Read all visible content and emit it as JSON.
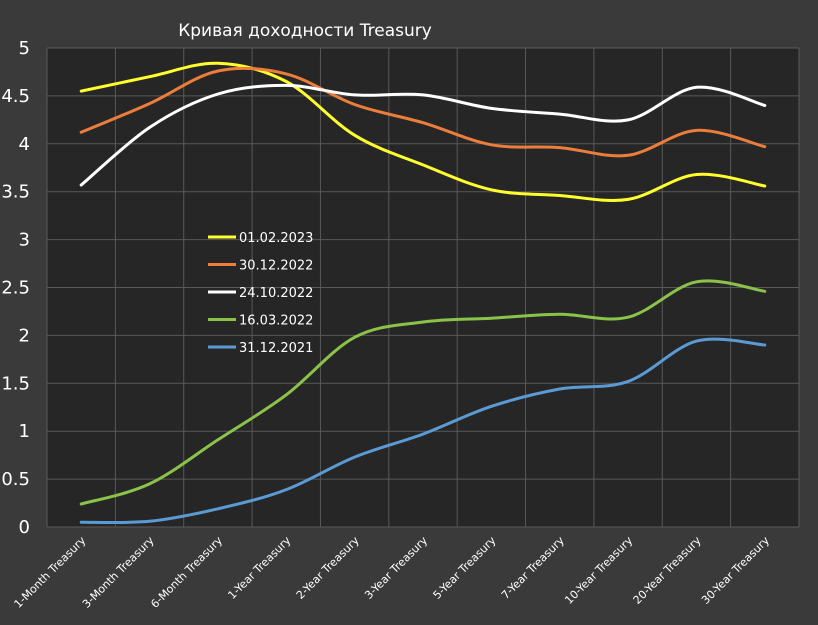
{
  "chart_data": {
    "type": "line",
    "title": "Кривая доходности Treasury",
    "xlabel": "",
    "ylabel": "",
    "ylim": [
      0,
      5
    ],
    "yticks": [
      "0",
      "0.5",
      "1",
      "1.5",
      "2",
      "2.5",
      "3",
      "3.5",
      "4",
      "4.5",
      "5"
    ],
    "grid": true,
    "legend_position": "center-left",
    "categories": [
      "1-Month Treasury",
      "3-Month Treasury",
      "6-Month Treasury",
      "1-Year Treasury",
      "2-Year Treasury",
      "3-Year Treasury",
      "5-Year Treasury",
      "7-Year Treasury",
      "10-Year Treasury",
      "20-Year Treasury",
      "30-Year Treasury"
    ],
    "series": [
      {
        "name": "01.02.2023",
        "color": "#ffff2e",
        "values": [
          4.55,
          4.7,
          4.84,
          4.65,
          4.09,
          3.78,
          3.52,
          3.46,
          3.42,
          3.68,
          3.56
        ]
      },
      {
        "name": "30.12.2022",
        "color": "#ec7d3b",
        "values": [
          4.12,
          4.42,
          4.76,
          4.73,
          4.41,
          4.22,
          3.99,
          3.96,
          3.88,
          4.14,
          3.97
        ]
      },
      {
        "name": "24.10.2022",
        "color": "#ffffff",
        "values": [
          3.57,
          4.17,
          4.52,
          4.61,
          4.51,
          4.51,
          4.37,
          4.31,
          4.25,
          4.59,
          4.4
        ]
      },
      {
        "name": "16.03.2022",
        "color": "#8bc34a",
        "values": [
          0.24,
          0.45,
          0.91,
          1.38,
          1.98,
          2.14,
          2.18,
          2.22,
          2.19,
          2.56,
          2.46
        ]
      },
      {
        "name": "31.12.2021",
        "color": "#5b9bd5",
        "values": [
          0.05,
          0.06,
          0.19,
          0.39,
          0.73,
          0.97,
          1.26,
          1.44,
          1.52,
          1.94,
          1.9
        ]
      }
    ]
  }
}
